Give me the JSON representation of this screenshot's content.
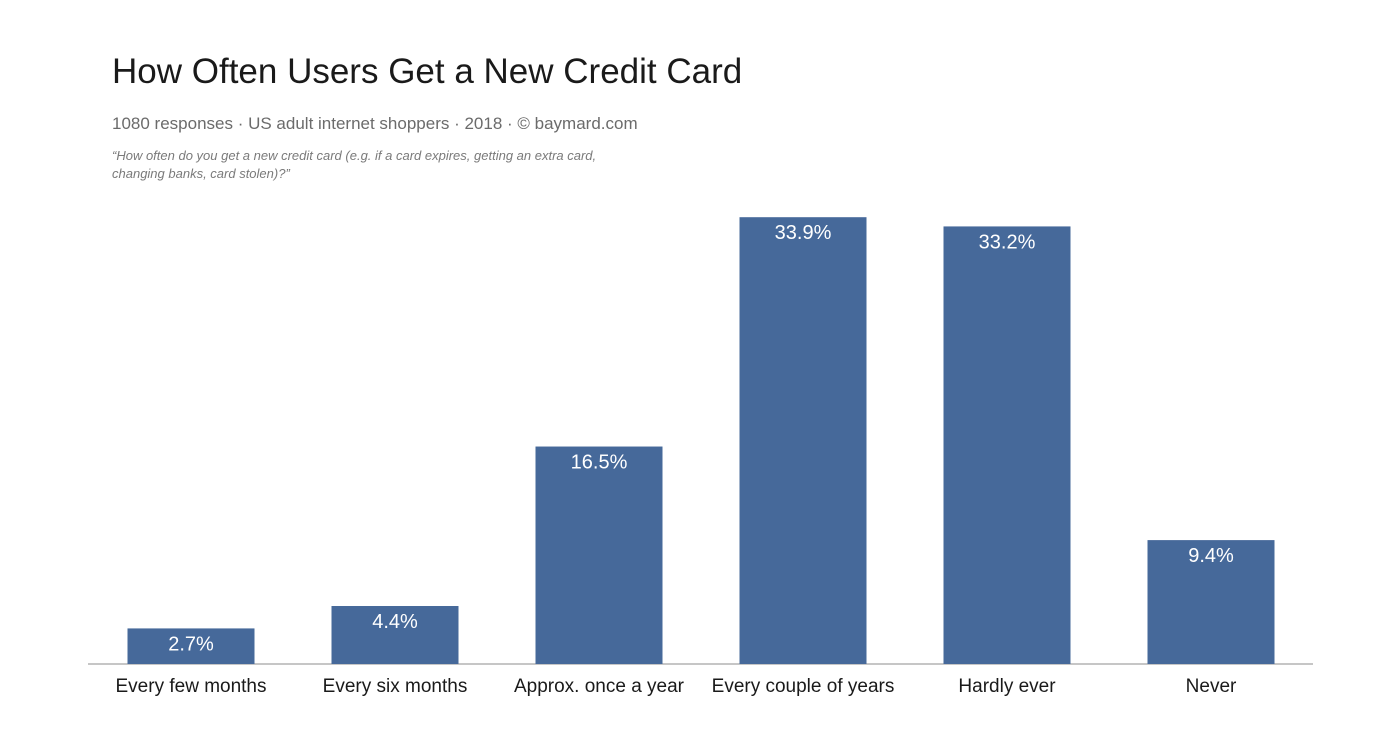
{
  "chart_data": {
    "type": "bar",
    "title": "How Often Users Get a New Credit Card",
    "subtitle": "1080 responses  ·  US adult internet shoppers ·  2018  ·  ©  baymard.com",
    "question": "“How often do you get a new credit card (e.g. if a card expires, getting an extra card, changing banks, card stolen)?”",
    "categories": [
      "Every few months",
      "Every six months",
      "Approx. once a year",
      "Every couple of years",
      "Hardly ever",
      "Never"
    ],
    "values": [
      2.7,
      4.4,
      16.5,
      33.9,
      33.2,
      9.4
    ],
    "value_labels": [
      "2.7%",
      "4.4%",
      "16.5%",
      "33.9%",
      "33.2%",
      "9.4%"
    ],
    "bar_color": "#46699a",
    "ylim": [
      0,
      35
    ],
    "grid": false
  }
}
